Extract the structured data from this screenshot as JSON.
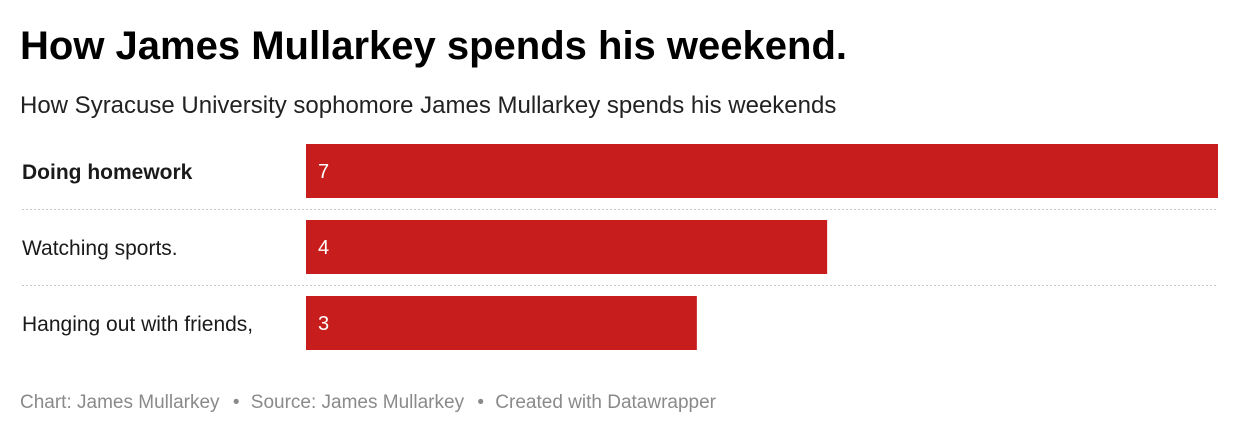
{
  "title": "How James Mullarkey spends his weekend.",
  "subtitle": "How Syracuse University sophomore James Mullarkey spends his weekends",
  "chart_data": {
    "type": "bar",
    "orientation": "horizontal",
    "categories": [
      "Doing homework",
      "Watching sports.",
      "Hanging out with friends,"
    ],
    "values": [
      7,
      4,
      3
    ],
    "xlim": [
      0,
      7
    ],
    "bar_color": "#c71e1d",
    "label_color": "#ffffff",
    "grid": false,
    "row_separators": "dotted"
  },
  "footer": {
    "chart_credit": "Chart: James Mullarkey",
    "source": "Source: James Mullarkey",
    "created_with": "Created with Datawrapper",
    "separator": "•"
  }
}
